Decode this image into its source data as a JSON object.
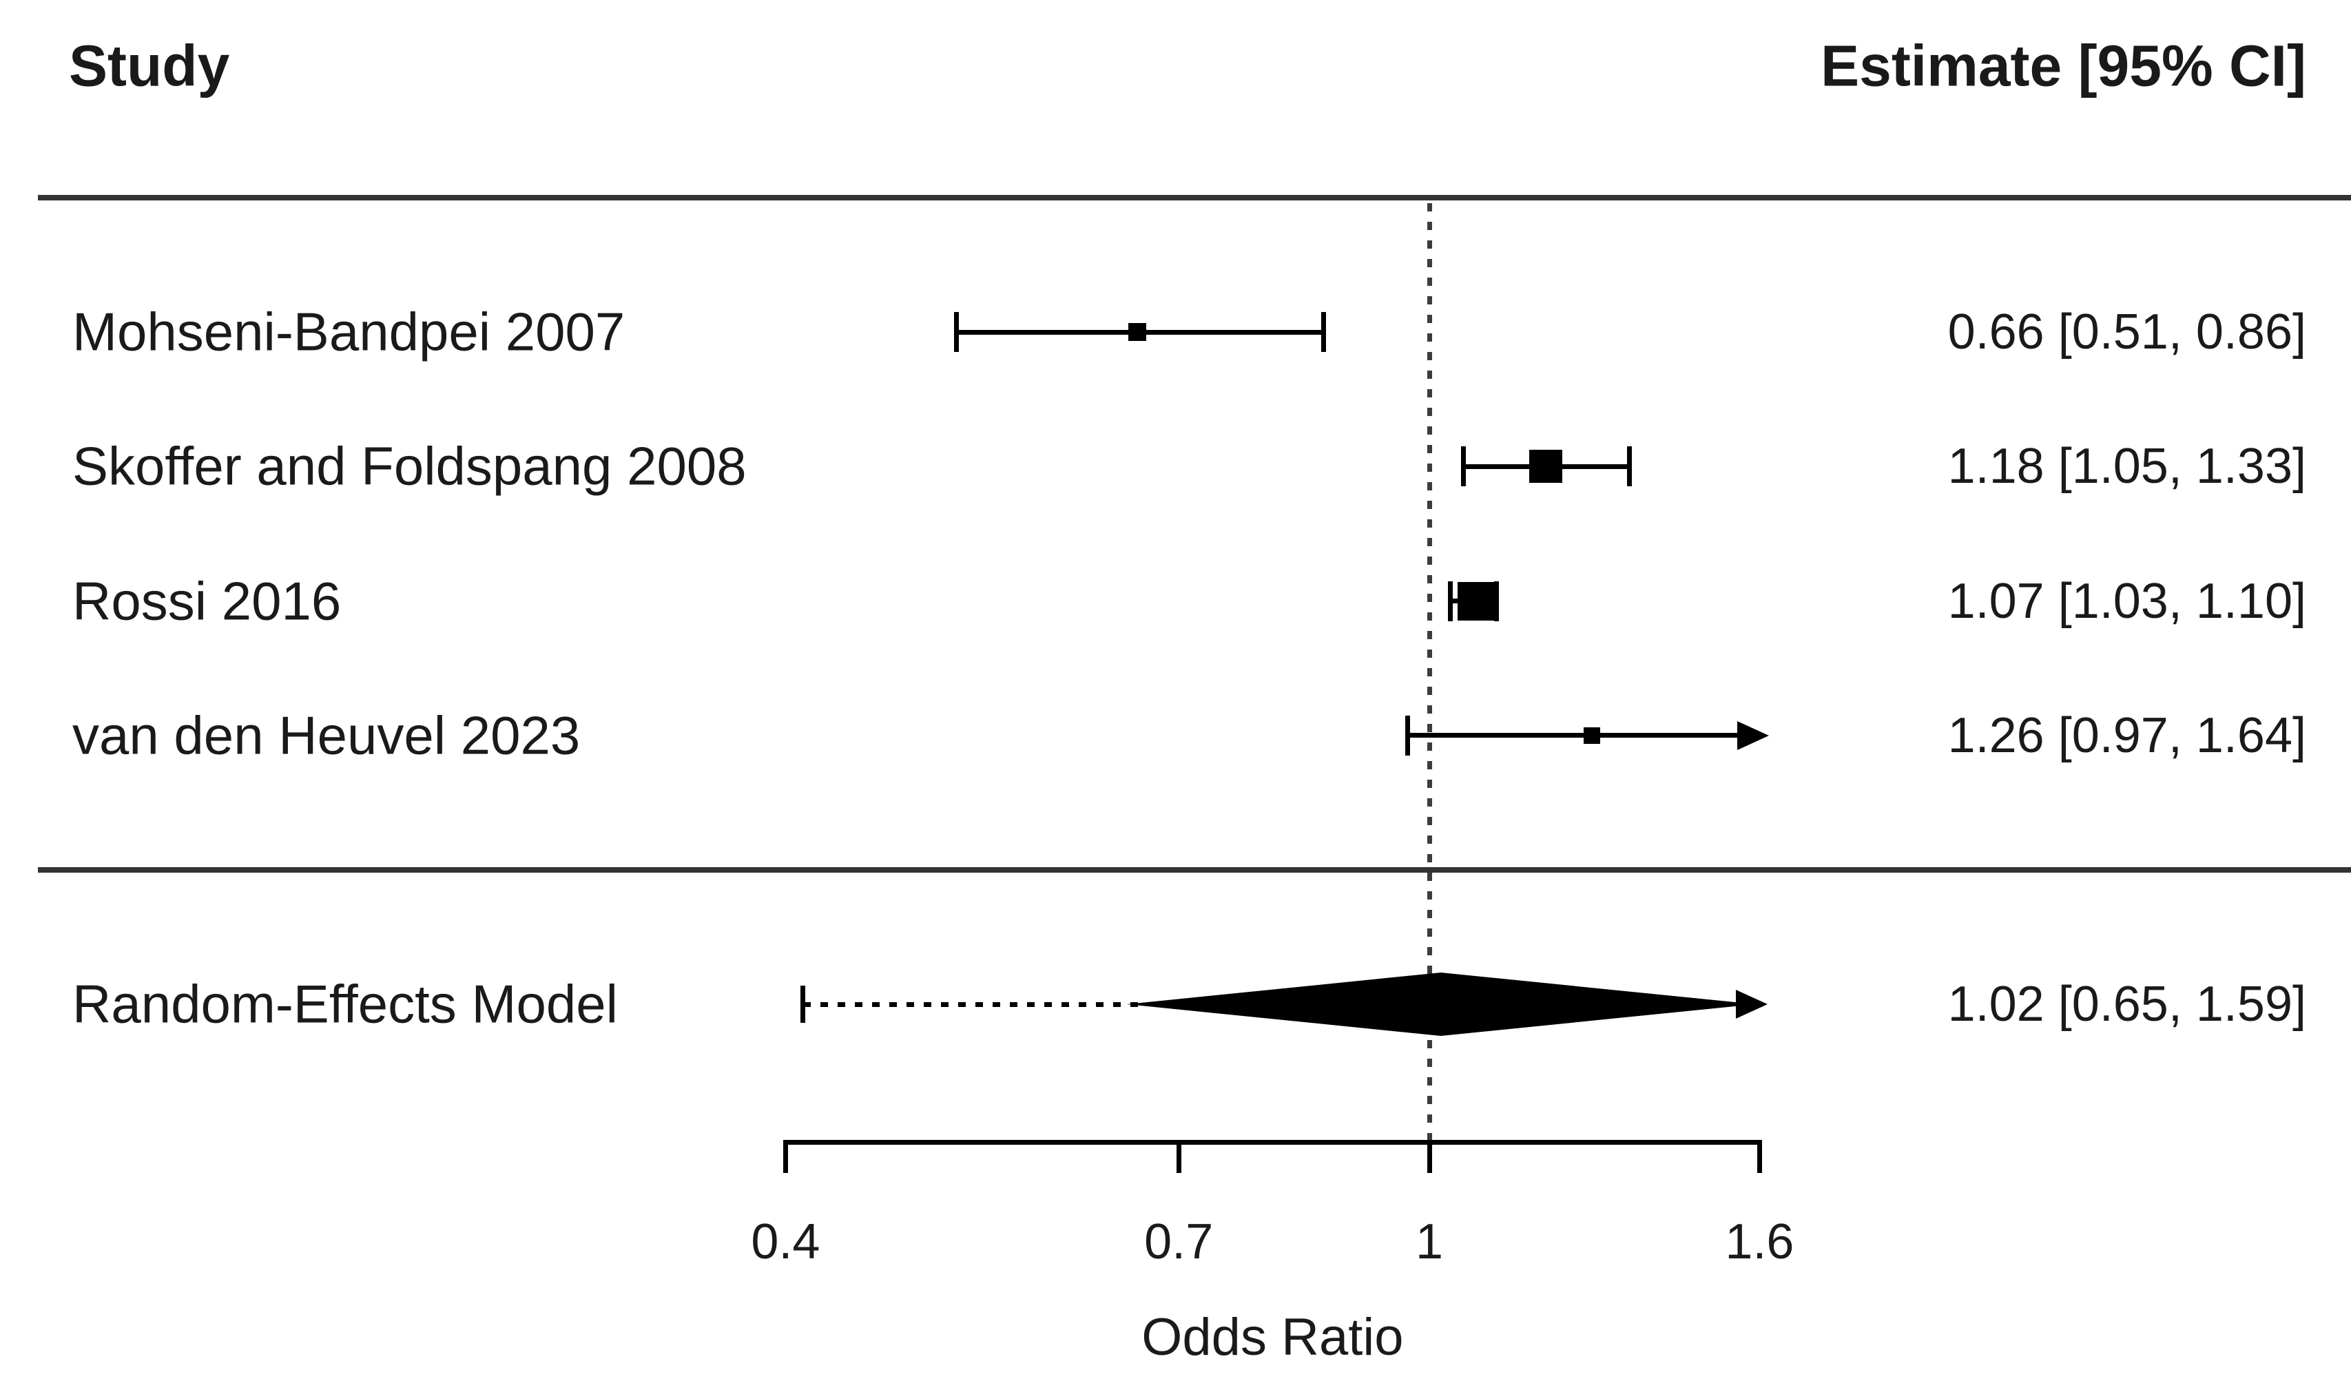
{
  "header": {
    "study_col": "Study",
    "estimate_col": "Estimate [95% CI]"
  },
  "chart_data": {
    "type": "forest",
    "scale": "log",
    "xlabel": "Odds Ratio",
    "x_ticks": [
      0.4,
      0.7,
      1,
      1.6
    ],
    "x_tick_labels": [
      "0.4",
      "0.7",
      "1",
      "1.6"
    ],
    "axis_range": [
      0.4,
      1.6
    ],
    "reference_line": 1,
    "studies": [
      {
        "label": "Mohseni-Bandpei 2007",
        "estimate": 0.66,
        "ci_lower": 0.51,
        "ci_upper": 0.86,
        "estimate_text": "0.66 [0.51, 0.86]",
        "marker_px": 26,
        "clipped_right": false
      },
      {
        "label": "Skoffer and Foldspang 2008",
        "estimate": 1.18,
        "ci_lower": 1.05,
        "ci_upper": 1.33,
        "estimate_text": "1.18 [1.05, 1.33]",
        "marker_px": 48,
        "clipped_right": false
      },
      {
        "label": "Rossi 2016",
        "estimate": 1.07,
        "ci_lower": 1.03,
        "ci_upper": 1.1,
        "estimate_text": "1.07 [1.03, 1.10]",
        "marker_px": 56,
        "clipped_right": false
      },
      {
        "label": "van den Heuvel 2023",
        "estimate": 1.26,
        "ci_lower": 0.97,
        "ci_upper": 1.64,
        "estimate_text": "1.26 [0.97, 1.64]",
        "marker_px": 24,
        "clipped_right": true
      }
    ],
    "summary": {
      "label": "Random-Effects Model",
      "estimate": 1.02,
      "ci_lower": 0.65,
      "ci_upper": 1.59,
      "estimate_text": "1.02 [0.65, 1.59]",
      "prediction_lower": 0.41,
      "prediction_clipped_right": true
    }
  }
}
